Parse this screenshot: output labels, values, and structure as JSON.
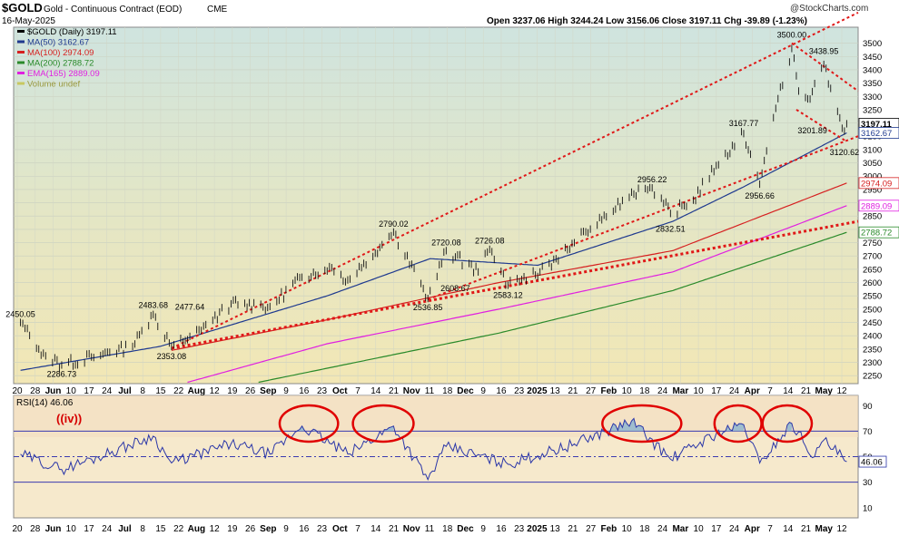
{
  "header": {
    "symbol": "$GOLD",
    "name": "Gold - Continuous Contract (EOD)",
    "exchange": "CME",
    "date": "16-May-2025",
    "ohlc": "Open 3237.06  High 3244.24  Low 3156.06  Close 3197.11  Chg -39.89 (-1.23%)",
    "watermark": "@StockCharts.com"
  },
  "legend": [
    {
      "label": "$GOLD (Daily) 3197.11",
      "color": "#000000"
    },
    {
      "label": "MA(50) 3162.67",
      "color": "#1f3a8f"
    },
    {
      "label": "MA(100) 2974.09",
      "color": "#d62020"
    },
    {
      "label": "MA(200) 2788.72",
      "color": "#2a8a2a"
    },
    {
      "label": "EMA(165) 2889.09",
      "color": "#e020e0"
    },
    {
      "label": "Volume undef",
      "color": "#c8c860"
    }
  ],
  "rsi": {
    "label": "RSI(14) 46.06",
    "wave_label": "((iv))",
    "current": "46.06"
  },
  "chart_data": [
    {
      "type": "line",
      "title": "$GOLD (Daily)",
      "y_ticks": [
        2250,
        2300,
        2350,
        2400,
        2450,
        2500,
        2550,
        2600,
        2650,
        2700,
        2750,
        2800,
        2850,
        2900,
        2950,
        3000,
        3050,
        3100,
        3150,
        3200,
        3250,
        3300,
        3350,
        3400,
        3450,
        3500
      ],
      "y_tick_labels": [
        "2250",
        "2300",
        "2350",
        "2400",
        "2450",
        "2500",
        "2550",
        "2600",
        "2650",
        "2700",
        "2750",
        "2800",
        "2850",
        "2900",
        "2950",
        "3000",
        "3050",
        "3100",
        "3150",
        "3200",
        "3250",
        "3300",
        "3350",
        "3400",
        "3450",
        "3500"
      ],
      "ylim": [
        2220,
        3560
      ],
      "x_tick_labels": [
        "20",
        "28",
        "Jun",
        "10",
        "17",
        "24",
        "Jul",
        "8",
        "15",
        "22",
        "Aug",
        "12",
        "19",
        "26",
        "Sep",
        "9",
        "16",
        "23",
        "Oct",
        "7",
        "14",
        "21",
        "Nov",
        "11",
        "18",
        "Dec",
        "9",
        "16",
        "23",
        "2025",
        "13",
        "21",
        "27",
        "Feb",
        "10",
        "18",
        "24",
        "Mar",
        "10",
        "17",
        "24",
        "Apr",
        "7",
        "14",
        "21",
        "May",
        "12"
      ],
      "price_anchors": [
        {
          "date": "2024-05-20",
          "value": 2450
        },
        {
          "date": "2024-05-28",
          "value": 2350
        },
        {
          "date": "2024-06-07",
          "value": 2290
        },
        {
          "date": "2024-06-20",
          "value": 2320
        },
        {
          "date": "2024-07-08",
          "value": 2360
        },
        {
          "date": "2024-07-17",
          "value": 2480
        },
        {
          "date": "2024-07-25",
          "value": 2360
        },
        {
          "date": "2024-08-07",
          "value": 2420
        },
        {
          "date": "2024-08-20",
          "value": 2520
        },
        {
          "date": "2024-09-06",
          "value": 2510
        },
        {
          "date": "2024-09-20",
          "value": 2620
        },
        {
          "date": "2024-10-02",
          "value": 2660
        },
        {
          "date": "2024-10-10",
          "value": 2610
        },
        {
          "date": "2024-10-30",
          "value": 2790
        },
        {
          "date": "2024-11-14",
          "value": 2540
        },
        {
          "date": "2024-11-22",
          "value": 2720
        },
        {
          "date": "2024-12-06",
          "value": 2640
        },
        {
          "date": "2024-12-11",
          "value": 2725
        },
        {
          "date": "2024-12-19",
          "value": 2590
        },
        {
          "date": "2025-01-02",
          "value": 2640
        },
        {
          "date": "2025-01-17",
          "value": 2750
        },
        {
          "date": "2025-02-11",
          "value": 2940
        },
        {
          "date": "2025-02-20",
          "value": 2956
        },
        {
          "date": "2025-02-28",
          "value": 2860
        },
        {
          "date": "2025-03-10",
          "value": 2910
        },
        {
          "date": "2025-03-20",
          "value": 3040
        },
        {
          "date": "2025-04-01",
          "value": 3160
        },
        {
          "date": "2025-04-08",
          "value": 2970
        },
        {
          "date": "2025-04-14",
          "value": 3220
        },
        {
          "date": "2025-04-22",
          "value": 3480
        },
        {
          "date": "2025-04-25",
          "value": 3320
        },
        {
          "date": "2025-04-30",
          "value": 3290
        },
        {
          "date": "2025-05-06",
          "value": 3420
        },
        {
          "date": "2025-05-09",
          "value": 3330
        },
        {
          "date": "2025-05-14",
          "value": 3180
        },
        {
          "date": "2025-05-16",
          "value": 3197
        }
      ],
      "annotations": [
        {
          "text": "2450.05",
          "date": "2024-05-20",
          "value": 2450.05
        },
        {
          "text": "2286.73",
          "date": "2024-06-07",
          "value": 2286.73
        },
        {
          "text": "2483.68",
          "date": "2024-07-17",
          "value": 2483.68
        },
        {
          "text": "2477.64",
          "date": "2024-08-02",
          "value": 2477.64
        },
        {
          "text": "2353.08",
          "date": "2024-07-25",
          "value": 2353.08
        },
        {
          "text": "2790.02",
          "date": "2024-10-30",
          "value": 2790.02
        },
        {
          "text": "2720.08",
          "date": "2024-11-22",
          "value": 2720.08
        },
        {
          "text": "2726.08",
          "date": "2024-12-11",
          "value": 2726.08
        },
        {
          "text": "2608.67",
          "date": "2024-11-26",
          "value": 2608.67
        },
        {
          "text": "2536.85",
          "date": "2024-11-14",
          "value": 2536.85
        },
        {
          "text": "2583.12",
          "date": "2024-12-19",
          "value": 2583.12
        },
        {
          "text": "2956.22",
          "date": "2025-02-20",
          "value": 2956.22
        },
        {
          "text": "2832.51",
          "date": "2025-02-28",
          "value": 2832.51
        },
        {
          "text": "3167.77",
          "date": "2025-04-01",
          "value": 3167.77
        },
        {
          "text": "2956.66",
          "date": "2025-04-08",
          "value": 2956.66
        },
        {
          "text": "3500.00",
          "date": "2025-04-22",
          "value": 3500.0
        },
        {
          "text": "3438.95",
          "date": "2025-05-06",
          "value": 3438.95
        },
        {
          "text": "3201.89",
          "date": "2025-05-01",
          "value": 3201.89
        },
        {
          "text": "3120.62",
          "date": "2025-05-15",
          "value": 3120.62
        }
      ],
      "right_labels": [
        {
          "text": "3197.11",
          "value": 3197.11,
          "color": "#000000"
        },
        {
          "text": "3162.67",
          "value": 3162.67,
          "color": "#1f3a8f"
        },
        {
          "text": "2974.09",
          "value": 2974.09,
          "color": "#d62020"
        },
        {
          "text": "2889.09",
          "value": 2889.09,
          "color": "#e020e0"
        },
        {
          "text": "2788.72",
          "value": 2788.72,
          "color": "#2a8a2a"
        }
      ],
      "moving_averages": [
        {
          "name": "MA(50)",
          "color": "#1f3a8f",
          "anchors": [
            {
              "date": "2024-05-20",
              "value": 2270
            },
            {
              "date": "2024-07-20",
              "value": 2360
            },
            {
              "date": "2024-10-01",
              "value": 2550
            },
            {
              "date": "2024-11-15",
              "value": 2690
            },
            {
              "date": "2025-01-01",
              "value": 2665
            },
            {
              "date": "2025-03-01",
              "value": 2830
            },
            {
              "date": "2025-04-01",
              "value": 2960
            },
            {
              "date": "2025-05-16",
              "value": 3162.67
            }
          ]
        },
        {
          "name": "MA(100)",
          "color": "#d62020",
          "anchors": [
            {
              "date": "2024-07-25",
              "value": 2345
            },
            {
              "date": "2024-10-01",
              "value": 2460
            },
            {
              "date": "2024-12-15",
              "value": 2600
            },
            {
              "date": "2025-03-01",
              "value": 2720
            },
            {
              "date": "2025-05-16",
              "value": 2974.09
            }
          ]
        },
        {
          "name": "EMA(165)",
          "color": "#e020e0",
          "anchors": [
            {
              "date": "2024-08-01",
              "value": 2225
            },
            {
              "date": "2024-10-01",
              "value": 2370
            },
            {
              "date": "2024-12-15",
              "value": 2500
            },
            {
              "date": "2025-03-01",
              "value": 2640
            },
            {
              "date": "2025-05-16",
              "value": 2889.09
            }
          ]
        },
        {
          "name": "MA(200)",
          "color": "#2a8a2a",
          "anchors": [
            {
              "date": "2024-09-01",
              "value": 2225
            },
            {
              "date": "2024-12-15",
              "value": 2410
            },
            {
              "date": "2025-03-01",
              "value": 2570
            },
            {
              "date": "2025-05-16",
              "value": 2788.72
            }
          ]
        }
      ],
      "trendlines": [
        {
          "from": {
            "date": "2024-07-25",
            "value": 2353
          },
          "to": {
            "date": "2025-05-21",
            "value": 3615
          }
        },
        {
          "from": {
            "date": "2024-07-25",
            "value": 2353
          },
          "to": {
            "date": "2025-05-21",
            "value": 2830
          }
        },
        {
          "from": {
            "date": "2024-11-14",
            "value": 2537
          },
          "to": {
            "date": "2025-05-21",
            "value": 3150
          }
        },
        {
          "from": {
            "date": "2025-04-22",
            "value": 3500
          },
          "to": {
            "date": "2025-05-21",
            "value": 3320
          }
        },
        {
          "from": {
            "date": "2025-04-24",
            "value": 3250
          },
          "to": {
            "date": "2025-05-16",
            "value": 3130
          }
        }
      ]
    },
    {
      "type": "line",
      "title": "RSI(14)",
      "y_ticks": [
        10,
        30,
        50,
        70,
        90
      ],
      "ylim": [
        2,
        98
      ],
      "reference_lines": [
        70,
        50,
        30
      ],
      "rsi_anchors": [
        {
          "date": "2024-05-20",
          "value": 52
        },
        {
          "date": "2024-06-07",
          "value": 40
        },
        {
          "date": "2024-06-20",
          "value": 48
        },
        {
          "date": "2024-07-17",
          "value": 66
        },
        {
          "date": "2024-07-25",
          "value": 45
        },
        {
          "date": "2024-08-20",
          "value": 60
        },
        {
          "date": "2024-09-06",
          "value": 52
        },
        {
          "date": "2024-09-20",
          "value": 74
        },
        {
          "date": "2024-10-10",
          "value": 52
        },
        {
          "date": "2024-10-30",
          "value": 74
        },
        {
          "date": "2024-11-14",
          "value": 32
        },
        {
          "date": "2024-11-22",
          "value": 58
        },
        {
          "date": "2024-12-19",
          "value": 44
        },
        {
          "date": "2025-01-17",
          "value": 60
        },
        {
          "date": "2025-02-11",
          "value": 78
        },
        {
          "date": "2025-02-28",
          "value": 48
        },
        {
          "date": "2025-03-20",
          "value": 68
        },
        {
          "date": "2025-04-01",
          "value": 75
        },
        {
          "date": "2025-04-08",
          "value": 45
        },
        {
          "date": "2025-04-22",
          "value": 76
        },
        {
          "date": "2025-05-02",
          "value": 50
        },
        {
          "date": "2025-05-06",
          "value": 63
        },
        {
          "date": "2025-05-16",
          "value": 46.06
        }
      ],
      "circled_regions": [
        {
          "from": "2024-09-15",
          "to": "2024-10-01"
        },
        {
          "from": "2024-10-17",
          "to": "2024-11-03"
        },
        {
          "from": "2025-02-03",
          "to": "2025-02-28"
        },
        {
          "from": "2025-03-24",
          "to": "2025-04-04"
        },
        {
          "from": "2025-04-14",
          "to": "2025-04-26"
        }
      ]
    }
  ]
}
